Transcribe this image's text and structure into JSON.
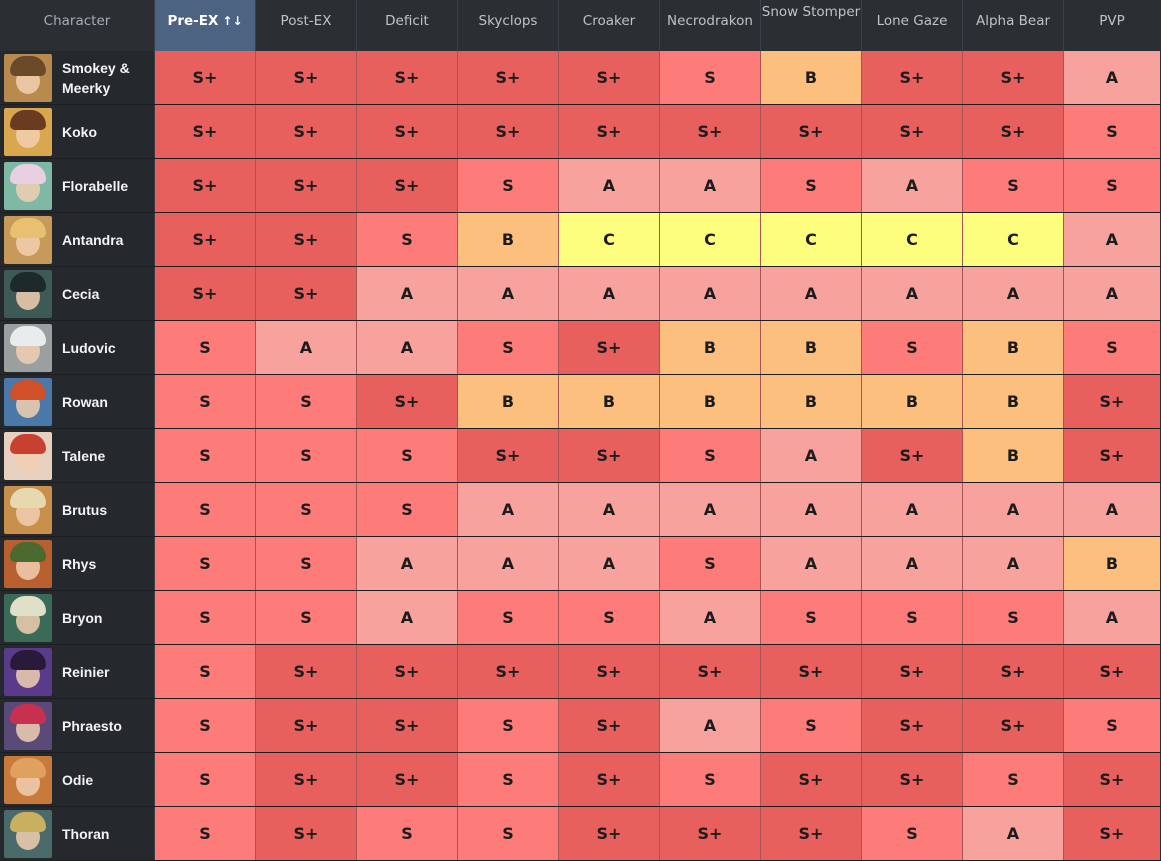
{
  "header": {
    "character_label": "Character",
    "sort_indicator": "↑↓",
    "columns": [
      "Pre-EX",
      "Post-EX",
      "Deficit",
      "Skyclops",
      "Croaker",
      "Necrodrakon",
      "Snow Stomper",
      "Lone Gaze",
      "Alpha Bear",
      "PVP"
    ],
    "active_column": "Pre-EX",
    "active_color": "#4c6382"
  },
  "tier_colors": {
    "S+": "#e8605e",
    "S": "#fd7b79",
    "A": "#f8a29e",
    "B": "#fcbf7e",
    "C": "#fdfd7e"
  },
  "rows": [
    {
      "name": "Smokey & Meerky",
      "avatar_color": "#b88a4e",
      "hair_color": "#6b4a2a",
      "tiers": [
        "S+",
        "S+",
        "S+",
        "S+",
        "S+",
        "S",
        "B",
        "S+",
        "S+",
        "A"
      ]
    },
    {
      "name": "Koko",
      "avatar_color": "#d9a84e",
      "hair_color": "#6a3b20",
      "tiers": [
        "S+",
        "S+",
        "S+",
        "S+",
        "S+",
        "S+",
        "S+",
        "S+",
        "S+",
        "S"
      ]
    },
    {
      "name": "Florabelle",
      "avatar_color": "#7fb8a4",
      "hair_color": "#e8d0e0",
      "tiers": [
        "S+",
        "S+",
        "S+",
        "S",
        "A",
        "A",
        "S",
        "A",
        "S",
        "S"
      ]
    },
    {
      "name": "Antandra",
      "avatar_color": "#c89a5a",
      "hair_color": "#e8c070",
      "tiers": [
        "S+",
        "S+",
        "S",
        "B",
        "C",
        "C",
        "C",
        "C",
        "C",
        "A"
      ]
    },
    {
      "name": "Cecia",
      "avatar_color": "#3d5a55",
      "hair_color": "#1e2a2a",
      "tiers": [
        "S+",
        "S+",
        "A",
        "A",
        "A",
        "A",
        "A",
        "A",
        "A",
        "A"
      ]
    },
    {
      "name": "Ludovic",
      "avatar_color": "#9aa0a0",
      "hair_color": "#e8ecec",
      "tiers": [
        "S",
        "A",
        "A",
        "S",
        "S+",
        "B",
        "B",
        "S",
        "B",
        "S"
      ]
    },
    {
      "name": "Rowan",
      "avatar_color": "#4a78a8",
      "hair_color": "#d0502a",
      "tiers": [
        "S",
        "S",
        "S+",
        "B",
        "B",
        "B",
        "B",
        "B",
        "B",
        "S+"
      ]
    },
    {
      "name": "Talene",
      "avatar_color": "#e8d0c0",
      "hair_color": "#c84030",
      "tiers": [
        "S",
        "S",
        "S",
        "S+",
        "S+",
        "S",
        "A",
        "S+",
        "B",
        "S+"
      ]
    },
    {
      "name": "Brutus",
      "avatar_color": "#c8904a",
      "hair_color": "#e8d8b0",
      "tiers": [
        "S",
        "S",
        "S",
        "A",
        "A",
        "A",
        "A",
        "A",
        "A",
        "A"
      ]
    },
    {
      "name": "Rhys",
      "avatar_color": "#b86030",
      "hair_color": "#4a6a30",
      "tiers": [
        "S",
        "S",
        "A",
        "A",
        "A",
        "S",
        "A",
        "A",
        "A",
        "B"
      ]
    },
    {
      "name": "Bryon",
      "avatar_color": "#3a6a58",
      "hair_color": "#e0e0c8",
      "tiers": [
        "S",
        "S",
        "A",
        "S",
        "S",
        "A",
        "S",
        "S",
        "S",
        "A"
      ]
    },
    {
      "name": "Reinier",
      "avatar_color": "#5a3a8a",
      "hair_color": "#2a1a3a",
      "tiers": [
        "S",
        "S+",
        "S+",
        "S+",
        "S+",
        "S+",
        "S+",
        "S+",
        "S+",
        "S+"
      ]
    },
    {
      "name": "Phraesto",
      "avatar_color": "#5a4a7a",
      "hair_color": "#c83050",
      "tiers": [
        "S",
        "S+",
        "S+",
        "S",
        "S+",
        "A",
        "S",
        "S+",
        "S+",
        "S"
      ]
    },
    {
      "name": "Odie",
      "avatar_color": "#c87a3a",
      "hair_color": "#e0a060",
      "tiers": [
        "S",
        "S+",
        "S+",
        "S",
        "S+",
        "S",
        "S+",
        "S+",
        "S",
        "S+"
      ]
    },
    {
      "name": "Thoran",
      "avatar_color": "#4a6a6a",
      "hair_color": "#c8b060",
      "tiers": [
        "S",
        "S+",
        "S",
        "S",
        "S+",
        "S+",
        "S+",
        "S",
        "A",
        "S+"
      ]
    }
  ]
}
